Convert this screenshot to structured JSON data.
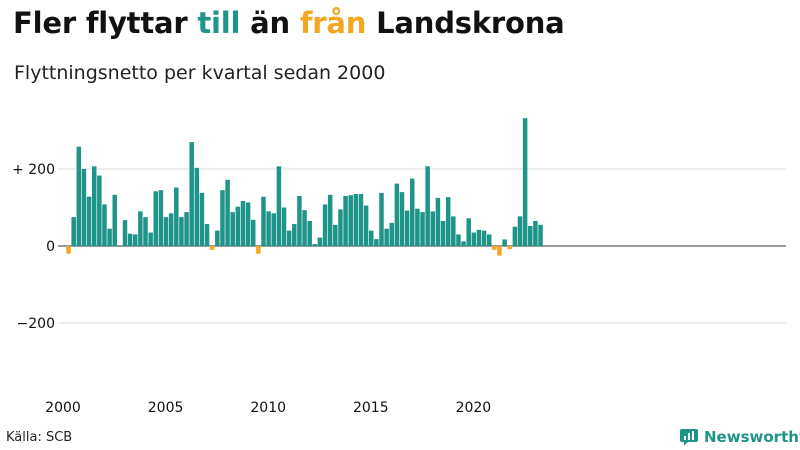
{
  "header": {
    "title_parts": [
      "Fler flyttar ",
      "till",
      " än ",
      "från",
      " Landskrona"
    ],
    "subtitle": "Flyttningsnetto per kvartal sedan 2000"
  },
  "footer": {
    "source": "Källa: SCB",
    "brand": "Newsworthy"
  },
  "colors": {
    "positive": "#1f9488",
    "negative": "#f5a623",
    "grid": "#dddddd",
    "baseline": "#333333"
  },
  "chart_data": {
    "type": "bar",
    "ylim": [
      -310,
      350
    ],
    "yticks": [
      -200,
      0,
      200
    ],
    "ytick_labels": [
      "−200",
      "0",
      "+ 200"
    ],
    "xticks": [
      2000,
      2005,
      2010,
      2015,
      2020
    ],
    "xtick_labels": [
      "2000",
      "2005",
      "2010",
      "2015",
      "2020"
    ],
    "x_start": 2000,
    "periods_per_year": 4,
    "grid": true,
    "values": [
      -20,
      75,
      258,
      200,
      128,
      207,
      183,
      108,
      45,
      133,
      0,
      67,
      32,
      30,
      90,
      75,
      35,
      142,
      145,
      75,
      85,
      152,
      75,
      88,
      270,
      203,
      138,
      57,
      -10,
      40,
      145,
      172,
      88,
      102,
      117,
      113,
      68,
      -20,
      128,
      90,
      85,
      207,
      100,
      40,
      57,
      130,
      93,
      65,
      5,
      22,
      108,
      133,
      55,
      95,
      130,
      132,
      135,
      135,
      105,
      40,
      18,
      138,
      45,
      60,
      162,
      140,
      92,
      175,
      97,
      88,
      207,
      90,
      125,
      65,
      127,
      77,
      30,
      12,
      72,
      35,
      42,
      40,
      30,
      -10,
      -25,
      17,
      -8,
      50,
      77,
      332,
      52,
      65,
      55
    ]
  }
}
